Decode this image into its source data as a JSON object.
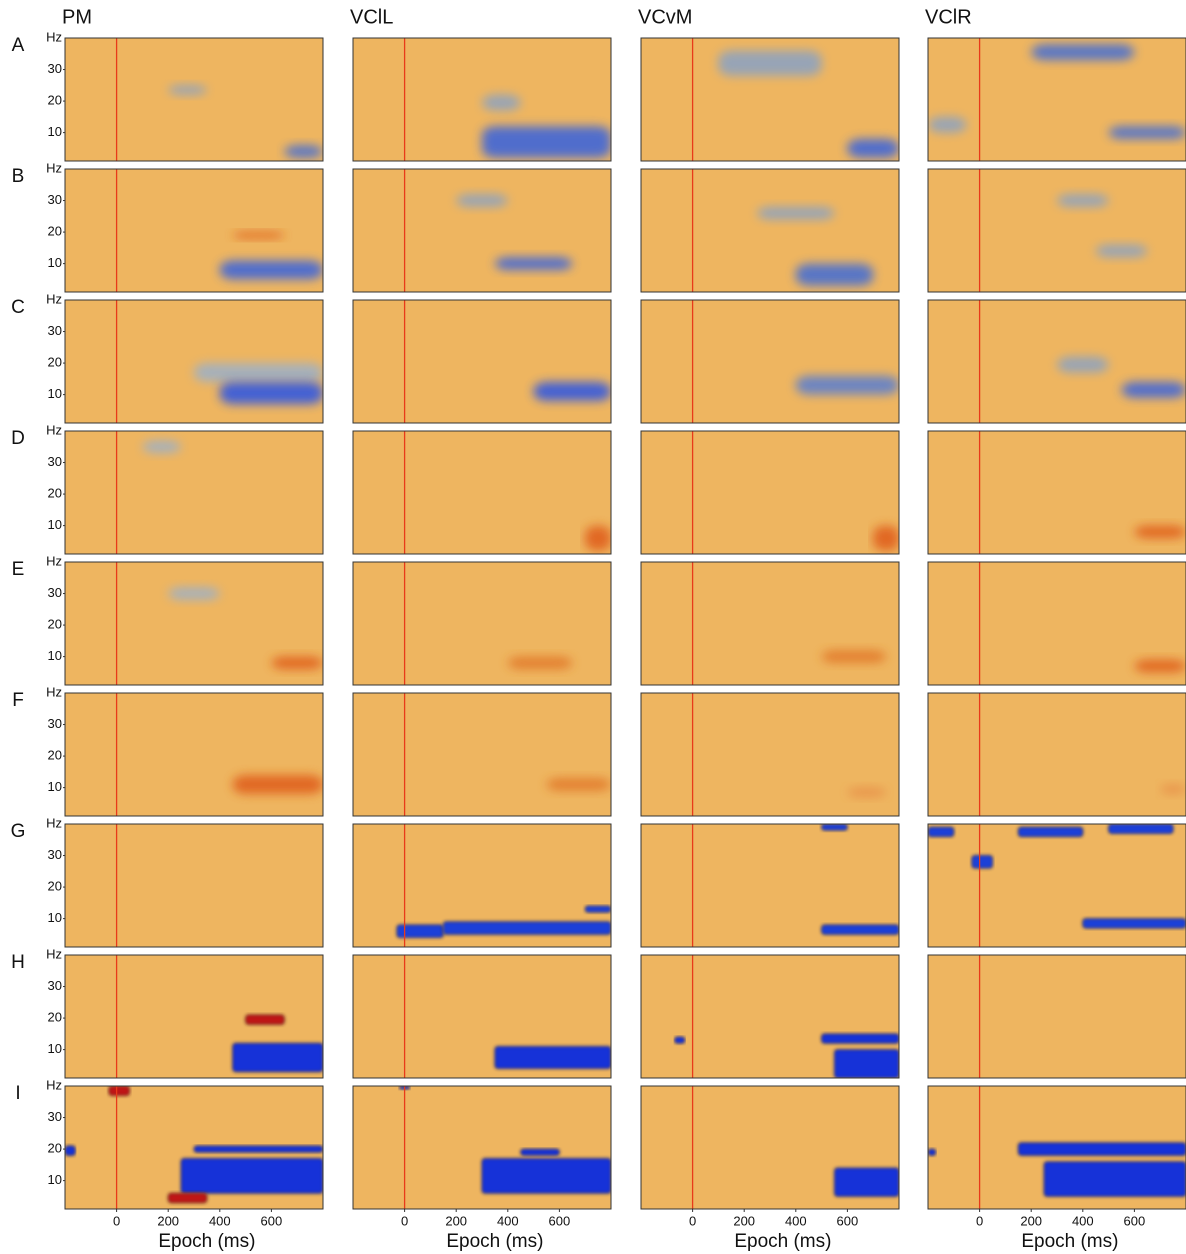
{
  "chart_data": {
    "type": "heatmap",
    "columns": [
      "PM",
      "VClL",
      "VCvM",
      "VClR"
    ],
    "rows": [
      "A",
      "B",
      "C",
      "D",
      "E",
      "F",
      "G",
      "H",
      "I"
    ],
    "x_label": "Epoch (ms)",
    "y_unit": "Hz",
    "xlim": [
      -200,
      800
    ],
    "ylim": [
      1,
      40
    ],
    "xticks": [
      0,
      200,
      400,
      600
    ],
    "yticks": [
      10,
      20,
      30
    ],
    "background": "#eeb560",
    "marker_line": {
      "x": 0,
      "color": "#e83a1a"
    },
    "panels": [
      [
        {
          "blobs": [
            {
              "t": [
                200,
                350
              ],
              "f": [
                22,
                25
              ],
              "color": "#8ea3bf"
            },
            {
              "t": [
                650,
                800
              ],
              "f": [
                2,
                6
              ],
              "color": "#4a6fd0"
            }
          ]
        },
        {
          "blobs": [
            {
              "t": [
                300,
                800
              ],
              "f": [
                2,
                12
              ],
              "color": "#3f66d8"
            },
            {
              "t": [
                300,
                450
              ],
              "f": [
                17,
                22
              ],
              "color": "#8ea3bf"
            }
          ]
        },
        {
          "blobs": [
            {
              "t": [
                600,
                800
              ],
              "f": [
                2,
                8
              ],
              "color": "#3f66d8"
            },
            {
              "t": [
                100,
                500
              ],
              "f": [
                28,
                36
              ],
              "color": "#8ea3bf"
            }
          ]
        },
        {
          "blobs": [
            {
              "t": [
                200,
                600
              ],
              "f": [
                33,
                38
              ],
              "color": "#4a6fd0"
            },
            {
              "t": [
                500,
                800
              ],
              "f": [
                8,
                12
              ],
              "color": "#4a6fd0"
            },
            {
              "t": [
                -200,
                -50
              ],
              "f": [
                10,
                15
              ],
              "color": "#8ea3bf"
            }
          ]
        }
      ],
      [
        {
          "blobs": [
            {
              "t": [
                400,
                800
              ],
              "f": [
                5,
                11
              ],
              "color": "#3f66d8"
            },
            {
              "t": [
                450,
                650
              ],
              "f": [
                18,
                20
              ],
              "color": "#e0601a"
            }
          ]
        },
        {
          "blobs": [
            {
              "t": [
                350,
                650
              ],
              "f": [
                8,
                12
              ],
              "color": "#3f66d8"
            },
            {
              "t": [
                200,
                400
              ],
              "f": [
                28,
                32
              ],
              "color": "#8ea3bf"
            }
          ]
        },
        {
          "blobs": [
            {
              "t": [
                400,
                700
              ],
              "f": [
                3,
                10
              ],
              "color": "#4a6fd0"
            },
            {
              "t": [
                250,
                550
              ],
              "f": [
                24,
                28
              ],
              "color": "#8ea3bf"
            }
          ]
        },
        {
          "blobs": [
            {
              "t": [
                450,
                650
              ],
              "f": [
                12,
                16
              ],
              "color": "#8ea3bf"
            },
            {
              "t": [
                300,
                500
              ],
              "f": [
                28,
                32
              ],
              "color": "#8ea3bf"
            }
          ]
        }
      ],
      [
        {
          "blobs": [
            {
              "t": [
                300,
                800
              ],
              "f": [
                14,
                20
              ],
              "color": "#9fb0c4"
            },
            {
              "t": [
                400,
                800
              ],
              "f": [
                7,
                14
              ],
              "color": "#3358e0"
            }
          ]
        },
        {
          "blobs": [
            {
              "t": [
                500,
                800
              ],
              "f": [
                8,
                14
              ],
              "color": "#3358e0"
            }
          ]
        },
        {
          "blobs": [
            {
              "t": [
                400,
                800
              ],
              "f": [
                10,
                16
              ],
              "color": "#5f80cc"
            }
          ]
        },
        {
          "blobs": [
            {
              "t": [
                300,
                500
              ],
              "f": [
                17,
                22
              ],
              "color": "#8ea3bf"
            },
            {
              "t": [
                550,
                800
              ],
              "f": [
                9,
                14
              ],
              "color": "#3f66d8"
            }
          ]
        }
      ],
      [
        {
          "blobs": [
            {
              "t": [
                100,
                250
              ],
              "f": [
                33,
                37
              ],
              "color": "#9fb0c4"
            }
          ]
        },
        {
          "blobs": [
            {
              "t": [
                700,
                800
              ],
              "f": [
                2,
                10
              ],
              "color": "#e0601a"
            }
          ]
        },
        {
          "blobs": [
            {
              "t": [
                700,
                800
              ],
              "f": [
                2,
                10
              ],
              "color": "#e0601a"
            }
          ]
        },
        {
          "blobs": [
            {
              "t": [
                600,
                800
              ],
              "f": [
                6,
                10
              ],
              "color": "#e0601a"
            }
          ]
        }
      ],
      [
        {
          "blobs": [
            {
              "t": [
                200,
                400
              ],
              "f": [
                28,
                32
              ],
              "color": "#9fb0c4"
            },
            {
              "t": [
                600,
                800
              ],
              "f": [
                6,
                10
              ],
              "color": "#e0601a"
            }
          ]
        },
        {
          "blobs": [
            {
              "t": [
                400,
                650
              ],
              "f": [
                6,
                10
              ],
              "color": "#e27a2a"
            }
          ]
        },
        {
          "blobs": [
            {
              "t": [
                500,
                750
              ],
              "f": [
                8,
                12
              ],
              "color": "#e27a2a"
            }
          ]
        },
        {
          "blobs": [
            {
              "t": [
                600,
                800
              ],
              "f": [
                5,
                9
              ],
              "color": "#e0601a"
            }
          ]
        }
      ],
      [
        {
          "blobs": [
            {
              "t": [
                450,
                800
              ],
              "f": [
                8,
                14
              ],
              "color": "#e0601a"
            }
          ]
        },
        {
          "blobs": [
            {
              "t": [
                550,
                800
              ],
              "f": [
                9,
                13
              ],
              "color": "#e27a2a"
            }
          ]
        },
        {
          "blobs": [
            {
              "t": [
                600,
                750
              ],
              "f": [
                7,
                10
              ],
              "color": "#e8924a"
            }
          ]
        },
        {
          "blobs": [
            {
              "t": [
                700,
                800
              ],
              "f": [
                8,
                11
              ],
              "color": "#e8924a"
            }
          ]
        }
      ],
      [
        {
          "blobs": []
        },
        {
          "blobs": [
            {
              "t": [
                -30,
                150
              ],
              "f": [
                4,
                8
              ],
              "color": "#1f3fd8"
            },
            {
              "t": [
                150,
                800
              ],
              "f": [
                5,
                9
              ],
              "color": "#1f3fd8"
            },
            {
              "t": [
                700,
                800
              ],
              "f": [
                12,
                14
              ],
              "color": "#1f3fd8"
            }
          ]
        },
        {
          "blobs": [
            {
              "t": [
                500,
                600
              ],
              "f": [
                38,
                40
              ],
              "color": "#1f3fd8"
            },
            {
              "t": [
                500,
                800
              ],
              "f": [
                5,
                8
              ],
              "color": "#1f3fd8"
            }
          ]
        },
        {
          "blobs": [
            {
              "t": [
                -200,
                -100
              ],
              "f": [
                36,
                39
              ],
              "color": "#1f3fd8"
            },
            {
              "t": [
                150,
                400
              ],
              "f": [
                36,
                39
              ],
              "color": "#1f3fd8"
            },
            {
              "t": [
                500,
                750
              ],
              "f": [
                37,
                40
              ],
              "color": "#1f3fd8"
            },
            {
              "t": [
                -30,
                50
              ],
              "f": [
                26,
                30
              ],
              "color": "#1f3fd8"
            },
            {
              "t": [
                400,
                800
              ],
              "f": [
                7,
                10
              ],
              "color": "#1f3fd8"
            }
          ]
        }
      ],
      [
        {
          "blobs": [
            {
              "t": [
                500,
                650
              ],
              "f": [
                18,
                21
              ],
              "color": "#c01818"
            },
            {
              "t": [
                450,
                800
              ],
              "f": [
                3,
                12
              ],
              "color": "#1530d8"
            }
          ]
        },
        {
          "blobs": [
            {
              "t": [
                350,
                800
              ],
              "f": [
                4,
                11
              ],
              "color": "#1530d8"
            }
          ]
        },
        {
          "blobs": [
            {
              "t": [
                -70,
                -30
              ],
              "f": [
                12,
                14
              ],
              "color": "#1530d8"
            },
            {
              "t": [
                500,
                800
              ],
              "f": [
                12,
                15
              ],
              "color": "#1530d8"
            },
            {
              "t": [
                550,
                800
              ],
              "f": [
                1,
                10
              ],
              "color": "#1530d8"
            }
          ]
        },
        {
          "blobs": []
        }
      ],
      [
        {
          "blobs": [
            {
              "t": [
                -30,
                50
              ],
              "f": [
                37,
                40
              ],
              "color": "#c01818"
            },
            {
              "t": [
                -200,
                -160
              ],
              "f": [
                18,
                21
              ],
              "color": "#1530d8"
            },
            {
              "t": [
                300,
                800
              ],
              "f": [
                19,
                21
              ],
              "color": "#1530d8"
            },
            {
              "t": [
                250,
                800
              ],
              "f": [
                6,
                17
              ],
              "color": "#1530d8"
            },
            {
              "t": [
                200,
                350
              ],
              "f": [
                3,
                6
              ],
              "color": "#c01818"
            }
          ]
        },
        {
          "blobs": [
            {
              "t": [
                -20,
                20
              ],
              "f": [
                39,
                40
              ],
              "color": "#1530d8"
            },
            {
              "t": [
                300,
                800
              ],
              "f": [
                6,
                17
              ],
              "color": "#1530d8"
            },
            {
              "t": [
                450,
                600
              ],
              "f": [
                18,
                20
              ],
              "color": "#1530d8"
            }
          ]
        },
        {
          "blobs": [
            {
              "t": [
                550,
                800
              ],
              "f": [
                5,
                14
              ],
              "color": "#1530d8"
            }
          ]
        },
        {
          "blobs": [
            {
              "t": [
                -200,
                -170
              ],
              "f": [
                18,
                20
              ],
              "color": "#1530d8"
            },
            {
              "t": [
                150,
                800
              ],
              "f": [
                18,
                22
              ],
              "color": "#1530d8"
            },
            {
              "t": [
                250,
                800
              ],
              "f": [
                5,
                16
              ],
              "color": "#1530d8"
            }
          ]
        }
      ]
    ]
  }
}
